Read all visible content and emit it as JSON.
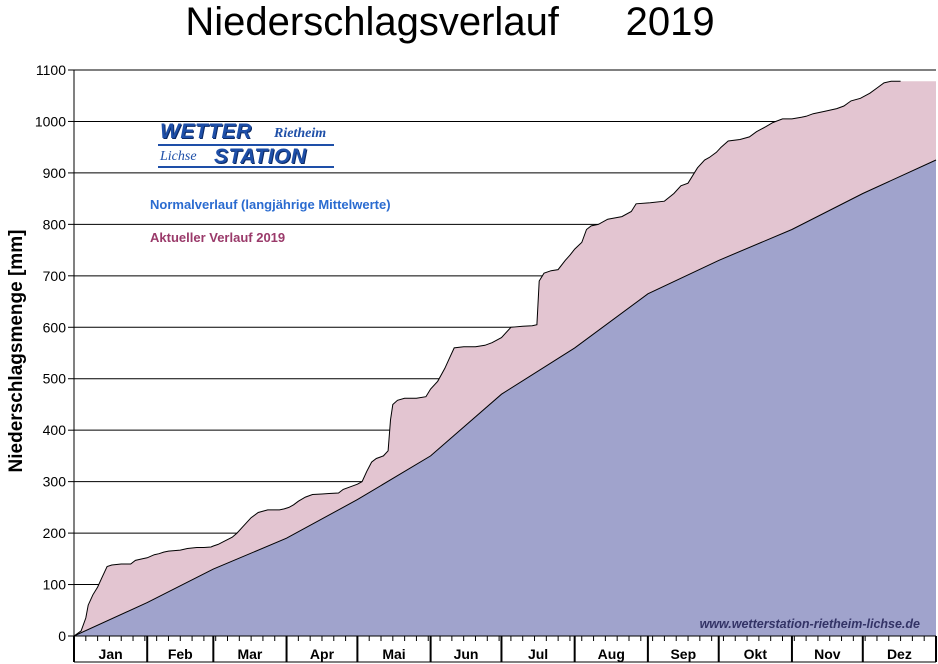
{
  "chart_title": "Niederschlagsverlauf",
  "chart_year": "2019",
  "colors": {
    "normal_fill": "#a0a3cc",
    "actual_fill": "#e3c5d1",
    "normal_text": "#2a6bd0",
    "actual_text": "#9a3a6a",
    "axis": "#000000",
    "grid": "#000000"
  },
  "logo": {
    "line1": "WETTER",
    "line1_small": "Rietheim",
    "line2_small": "Lichse",
    "line2": "STATION"
  },
  "footer_url": "www.wetterstation-rietheim-lichse.de",
  "chart_data": {
    "type": "area",
    "title": "Niederschlagsverlauf 2019",
    "xlabel": "",
    "ylabel": "Niederschlagsmenge [mm]",
    "ylim": [
      0,
      1100
    ],
    "yticks": [
      0,
      100,
      200,
      300,
      400,
      500,
      600,
      700,
      800,
      900,
      1000,
      1100
    ],
    "xlim": [
      0,
      365
    ],
    "month_labels": [
      "Jan",
      "Feb",
      "Mar",
      "Apr",
      "Mai",
      "Jun",
      "Jul",
      "Aug",
      "Sep",
      "Okt",
      "Nov",
      "Dez"
    ],
    "grid": true,
    "legend_position": "top-left",
    "series": [
      {
        "name": "Normalverlauf (langjährige Mittelwerte)",
        "points": [
          [
            0,
            0
          ],
          [
            31,
            65
          ],
          [
            59,
            130
          ],
          [
            90,
            190
          ],
          [
            120,
            265
          ],
          [
            151,
            350
          ],
          [
            181,
            470
          ],
          [
            212,
            560
          ],
          [
            243,
            665
          ],
          [
            273,
            730
          ],
          [
            304,
            790
          ],
          [
            334,
            860
          ],
          [
            365,
            925
          ]
        ]
      },
      {
        "name": "Aktueller Verlauf 2019",
        "points": [
          [
            0,
            0
          ],
          [
            3,
            10
          ],
          [
            5,
            35
          ],
          [
            6,
            60
          ],
          [
            8,
            80
          ],
          [
            10,
            95
          ],
          [
            12,
            115
          ],
          [
            13,
            125
          ],
          [
            14,
            135
          ],
          [
            16,
            138
          ],
          [
            20,
            140
          ],
          [
            24,
            140
          ],
          [
            26,
            147
          ],
          [
            29,
            150
          ],
          [
            31,
            152
          ],
          [
            34,
            158
          ],
          [
            36,
            160
          ],
          [
            38,
            163
          ],
          [
            40,
            165
          ],
          [
            45,
            167
          ],
          [
            48,
            170
          ],
          [
            52,
            172
          ],
          [
            55,
            172
          ],
          [
            58,
            173
          ],
          [
            59,
            175
          ],
          [
            61,
            178
          ],
          [
            64,
            185
          ],
          [
            67,
            192
          ],
          [
            69,
            200
          ],
          [
            71,
            210
          ],
          [
            73,
            220
          ],
          [
            75,
            230
          ],
          [
            78,
            240
          ],
          [
            82,
            245
          ],
          [
            87,
            245
          ],
          [
            89,
            247
          ],
          [
            91,
            250
          ],
          [
            93,
            255
          ],
          [
            95,
            262
          ],
          [
            98,
            270
          ],
          [
            101,
            275
          ],
          [
            105,
            276
          ],
          [
            108,
            277
          ],
          [
            112,
            278
          ],
          [
            114,
            285
          ],
          [
            117,
            290
          ],
          [
            120,
            295
          ],
          [
            122,
            300
          ],
          [
            124,
            320
          ],
          [
            126,
            338
          ],
          [
            128,
            345
          ],
          [
            131,
            350
          ],
          [
            133,
            360
          ],
          [
            134,
            420
          ],
          [
            135,
            450
          ],
          [
            137,
            458
          ],
          [
            140,
            462
          ],
          [
            145,
            462
          ],
          [
            149,
            465
          ],
          [
            151,
            480
          ],
          [
            154,
            495
          ],
          [
            157,
            520
          ],
          [
            159,
            540
          ],
          [
            161,
            560
          ],
          [
            165,
            562
          ],
          [
            170,
            562
          ],
          [
            174,
            565
          ],
          [
            177,
            570
          ],
          [
            181,
            580
          ],
          [
            185,
            600
          ],
          [
            190,
            602
          ],
          [
            194,
            603
          ],
          [
            196,
            605
          ],
          [
            197,
            690
          ],
          [
            199,
            705
          ],
          [
            202,
            710
          ],
          [
            205,
            712
          ],
          [
            208,
            730
          ],
          [
            210,
            740
          ],
          [
            212,
            752
          ],
          [
            215,
            765
          ],
          [
            217,
            790
          ],
          [
            219,
            797
          ],
          [
            222,
            800
          ],
          [
            226,
            810
          ],
          [
            232,
            815
          ],
          [
            236,
            825
          ],
          [
            238,
            840
          ],
          [
            244,
            842
          ],
          [
            250,
            845
          ],
          [
            254,
            860
          ],
          [
            257,
            875
          ],
          [
            260,
            880
          ],
          [
            264,
            910
          ],
          [
            267,
            925
          ],
          [
            269,
            930
          ],
          [
            272,
            940
          ],
          [
            274,
            950
          ],
          [
            277,
            962
          ],
          [
            282,
            965
          ],
          [
            286,
            970
          ],
          [
            289,
            980
          ],
          [
            293,
            990
          ],
          [
            296,
            998
          ],
          [
            300,
            1005
          ],
          [
            304,
            1005
          ],
          [
            308,
            1008
          ],
          [
            310,
            1010
          ],
          [
            313,
            1015
          ],
          [
            318,
            1020
          ],
          [
            323,
            1025
          ],
          [
            326,
            1030
          ],
          [
            329,
            1040
          ],
          [
            333,
            1045
          ],
          [
            337,
            1055
          ],
          [
            340,
            1065
          ],
          [
            343,
            1075
          ],
          [
            346,
            1078
          ],
          [
            350,
            1078
          ]
        ]
      }
    ]
  }
}
